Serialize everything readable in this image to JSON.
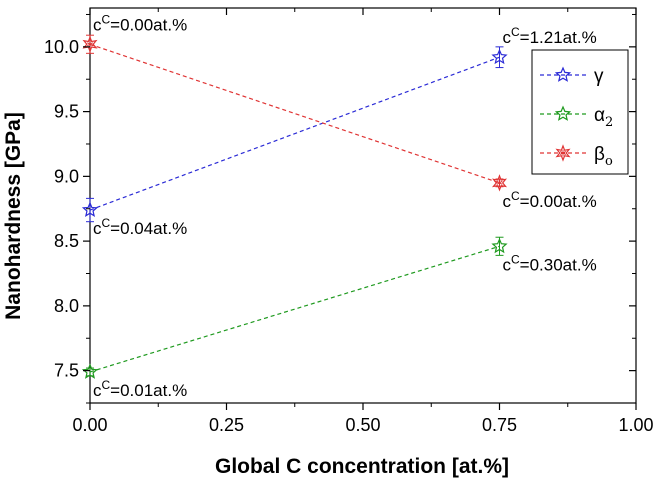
{
  "chart_data": {
    "type": "scatter",
    "xlabel": "Global C concentration [at.%]",
    "ylabel": "Nanohardness [GPa]",
    "xlim": [
      0.0,
      1.0
    ],
    "ylim": [
      7.25,
      10.3
    ],
    "x_ticks": [
      "0.00",
      "0.25",
      "0.50",
      "0.75",
      "1.00"
    ],
    "y_ticks": [
      "7.5",
      "8.0",
      "8.5",
      "9.0",
      "9.5",
      "10.0"
    ],
    "x_tick_values": [
      0.0,
      0.25,
      0.5,
      0.75,
      1.0
    ],
    "y_tick_values": [
      7.5,
      8.0,
      8.5,
      9.0,
      9.5,
      10.0
    ],
    "legend_position": "top-right",
    "series": [
      {
        "name_main": "γ",
        "name_sub": "",
        "color": "#2b2bd6",
        "marker": "star-5",
        "x": [
          0.0,
          0.75
        ],
        "y": [
          8.74,
          9.92
        ],
        "yerr": [
          0.09,
          0.08
        ],
        "annotations": [
          {
            "prefix": "c",
            "sup": "C",
            "text": "=0.04at.%",
            "x": 0.0,
            "y": 8.74,
            "where": "below"
          },
          {
            "prefix": "c",
            "sup": "C",
            "text": "=1.21at.%",
            "x": 0.75,
            "y": 9.92,
            "where": "above"
          }
        ]
      },
      {
        "name_main": "α",
        "name_sub": "2",
        "color": "#1f9a1f",
        "marker": "star-5",
        "x": [
          0.0,
          0.75
        ],
        "y": [
          7.49,
          8.46
        ],
        "yerr": [
          0.03,
          0.07
        ],
        "annotations": [
          {
            "prefix": "c",
            "sup": "C",
            "text": "=0.01at.%",
            "x": 0.0,
            "y": 7.49,
            "where": "below"
          },
          {
            "prefix": "c",
            "sup": "C",
            "text": "=0.30at.%",
            "x": 0.75,
            "y": 8.46,
            "where": "below"
          }
        ]
      },
      {
        "name_main": "β",
        "name_sub": "o",
        "color": "#e03434",
        "marker": "star-6",
        "x": [
          0.0,
          0.75
        ],
        "y": [
          10.02,
          8.95
        ],
        "yerr": [
          0.07,
          0.03
        ],
        "annotations": [
          {
            "prefix": "c",
            "sup": "C",
            "text": "=0.00at.%",
            "x": 0.0,
            "y": 10.02,
            "where": "above"
          },
          {
            "prefix": "c",
            "sup": "C",
            "text": "=0.00at.%",
            "x": 0.75,
            "y": 8.95,
            "where": "below"
          }
        ]
      }
    ]
  }
}
